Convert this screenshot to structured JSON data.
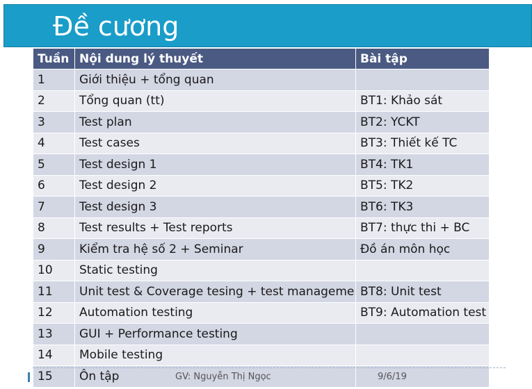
{
  "slide": {
    "title": "Đề cương",
    "footer_author": "GV: Nguyễn Thị Ngọc",
    "footer_date": "9/6/19"
  },
  "table": {
    "headers": [
      "Tuần",
      "Nội dung lý thuyết",
      "Bài tập"
    ],
    "rows": [
      [
        "1",
        "Giới thiệu + tổng quan",
        ""
      ],
      [
        "2",
        "Tổng quan (tt)",
        "BT1: Khảo sát"
      ],
      [
        "3",
        "Test plan",
        "BT2: YCKT"
      ],
      [
        "4",
        "Test cases",
        "BT3: Thiết kế TC"
      ],
      [
        "5",
        "Test design 1",
        "BT4: TK1"
      ],
      [
        "6",
        "Test design 2",
        "BT5: TK2"
      ],
      [
        "7",
        "Test design 3",
        "BT6: TK3"
      ],
      [
        "8",
        "Test results + Test reports",
        "BT7: thực thi + BC"
      ],
      [
        "9",
        "Kiểm tra hệ số 2 + Seminar",
        "Đồ án môn học"
      ],
      [
        "10",
        "Static testing",
        ""
      ],
      [
        "11",
        "Unit test & Coverage tesing + test management",
        "BT8: Unit test"
      ],
      [
        "12",
        "Automation testing",
        "BT9: Automation test"
      ],
      [
        "13",
        "GUI + Performance testing",
        ""
      ],
      [
        "14",
        "Mobile testing",
        ""
      ],
      [
        "15",
        "Ôn tập",
        ""
      ]
    ]
  }
}
